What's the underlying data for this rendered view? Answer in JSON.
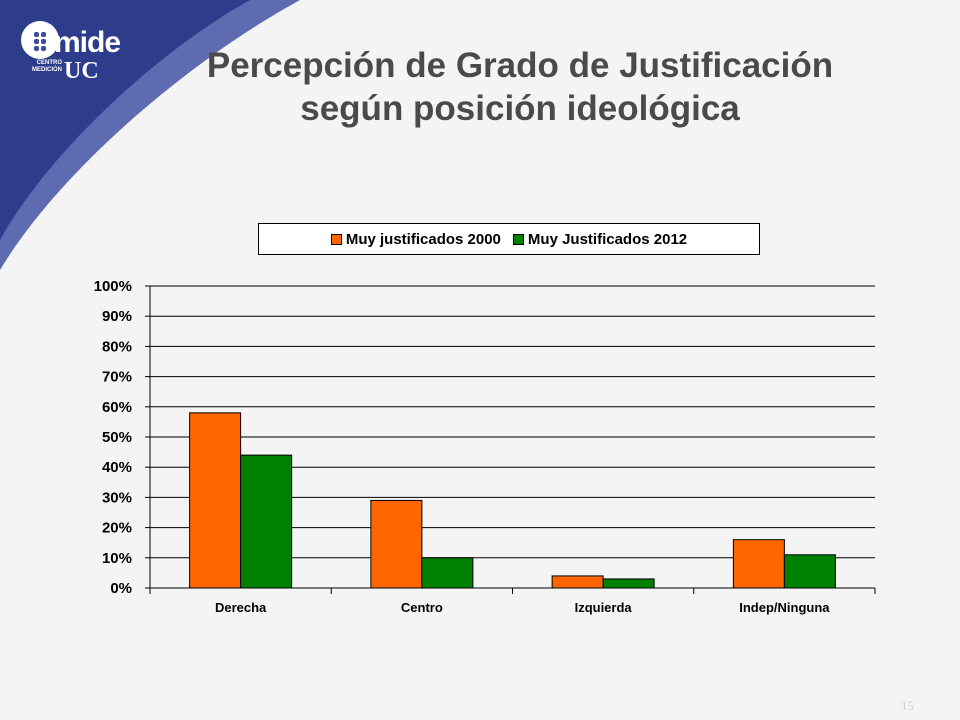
{
  "slide": {
    "title_line1": "Percepción de Grado de Justificación",
    "title_line2": "según posición ideológica",
    "page_number": "15"
  },
  "logo": {
    "text": "mide",
    "suffix": "UC",
    "subtext_line1": "CENTRO",
    "subtext_line2": "MEDICIÓN"
  },
  "colors": {
    "series_2000": "#ff6600",
    "series_2012": "#008000",
    "corner_dark": "#2e3c8c",
    "corner_light": "#5e6bb0"
  },
  "chart_data": {
    "type": "bar",
    "categories": [
      "Derecha",
      "Centro",
      "Izquierda",
      "Indep/Ninguna"
    ],
    "series": [
      {
        "name": "Muy justificados 2000",
        "values": [
          58,
          29,
          4,
          16
        ]
      },
      {
        "name": "Muy Justificados 2012",
        "values": [
          44,
          10,
          3,
          11
        ]
      }
    ],
    "ylim": [
      0,
      100
    ],
    "yticks": [
      0,
      10,
      20,
      30,
      40,
      50,
      60,
      70,
      80,
      90,
      100
    ],
    "ytick_labels": [
      "0%",
      "10%",
      "20%",
      "30%",
      "40%",
      "50%",
      "60%",
      "70%",
      "80%",
      "90%",
      "100%"
    ],
    "grid": true,
    "legend_position": "top"
  }
}
